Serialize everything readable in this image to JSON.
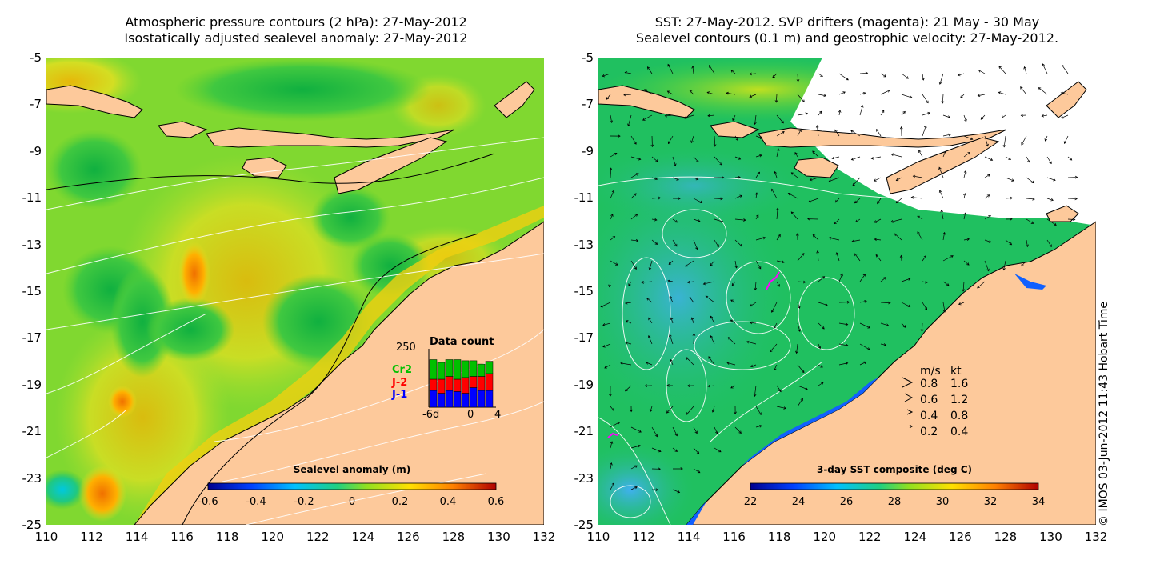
{
  "left_panel": {
    "title_line1": "Atmospheric pressure contours (2 hPa): 27-May-2012",
    "title_line2": "Isostatically adjusted sealevel anomaly: 27-May-2012",
    "colorbar_title": "Sealevel anomaly (m)",
    "colorbar_ticks": [
      "-0.6",
      "-0.4",
      "-0.2",
      "0",
      "0.2",
      "0.4",
      "0.6"
    ],
    "inset": {
      "title": "Data count",
      "ymax_label": "250",
      "series": [
        "Cr2",
        "J-2",
        "J-1"
      ],
      "series_colors": [
        "#00c000",
        "#ff0000",
        "#0000ff"
      ],
      "x_start_label": "-6d",
      "x_mid_label": "0",
      "x_end_label": "4",
      "bars": [
        {
          "j1": 0.3,
          "j2": 0.2,
          "cr2": 0.35
        },
        {
          "j1": 0.25,
          "j2": 0.25,
          "cr2": 0.3
        },
        {
          "j1": 0.3,
          "j2": 0.25,
          "cr2": 0.3
        },
        {
          "j1": 0.28,
          "j2": 0.22,
          "cr2": 0.35
        },
        {
          "j1": 0.25,
          "j2": 0.28,
          "cr2": 0.3
        },
        {
          "j1": 0.35,
          "j2": 0.2,
          "cr2": 0.28
        },
        {
          "j1": 0.3,
          "j2": 0.25,
          "cr2": 0.22
        },
        {
          "j1": 0.3,
          "j2": 0.3,
          "cr2": 0.22
        }
      ]
    }
  },
  "right_panel": {
    "title_line1": "SST: 27-May-2012. SVP drifters (magenta): 21 May - 30 May",
    "title_line2": "Sealevel contours (0.1 m) and geostrophic velocity: 27-May-2012.",
    "colorbar_title": "3-day SST composite (deg C)",
    "colorbar_ticks": [
      "22",
      "24",
      "26",
      "28",
      "30",
      "32",
      "34"
    ],
    "velocity_legend": {
      "header_ms": "m/s",
      "header_kt": "kt",
      "rows": [
        {
          "ms": "0.8",
          "kt": "1.6"
        },
        {
          "ms": "0.6",
          "kt": "1.2"
        },
        {
          "ms": "0.4",
          "kt": "0.8"
        },
        {
          "ms": "0.2",
          "kt": "0.4"
        }
      ]
    }
  },
  "y_ticks": [
    "-5",
    "-7",
    "-9",
    "-11",
    "-13",
    "-15",
    "-17",
    "-19",
    "-21",
    "-23",
    "-25"
  ],
  "x_ticks": [
    "110",
    "112",
    "114",
    "116",
    "118",
    "120",
    "122",
    "124",
    "126",
    "128",
    "130",
    "132"
  ],
  "copyright": "© IMOS 03-Jun-2012 11:43 Hobart Time",
  "colors": {
    "land": "#fdc99b",
    "sla_background": "#7fdc2c",
    "sst_background": "#20c060",
    "drifter": "#ff00ff"
  }
}
